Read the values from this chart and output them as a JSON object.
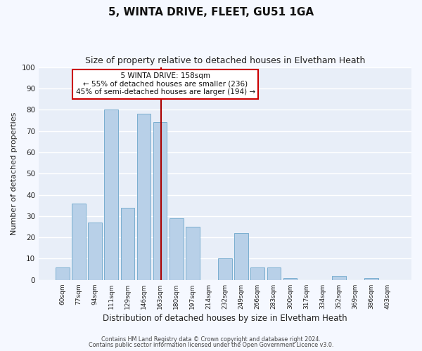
{
  "title": "5, WINTA DRIVE, FLEET, GU51 1GA",
  "subtitle": "Size of property relative to detached houses in Elvetham Heath",
  "xlabel": "Distribution of detached houses by size in Elvetham Heath",
  "ylabel": "Number of detached properties",
  "bar_labels": [
    "60sqm",
    "77sqm",
    "94sqm",
    "111sqm",
    "129sqm",
    "146sqm",
    "163sqm",
    "180sqm",
    "197sqm",
    "214sqm",
    "232sqm",
    "249sqm",
    "266sqm",
    "283sqm",
    "300sqm",
    "317sqm",
    "334sqm",
    "352sqm",
    "369sqm",
    "386sqm",
    "403sqm"
  ],
  "bar_values": [
    6,
    36,
    27,
    80,
    34,
    78,
    74,
    29,
    25,
    0,
    10,
    22,
    6,
    6,
    1,
    0,
    0,
    2,
    0,
    1,
    0
  ],
  "bar_color": "#b8d0e8",
  "bar_edge_color": "#7aaed0",
  "annotation_title": "5 WINTA DRIVE: 158sqm",
  "annotation_line1": "← 55% of detached houses are smaller (236)",
  "annotation_line2": "45% of semi-detached houses are larger (194) →",
  "annotation_box_color": "#ffffff",
  "annotation_box_edge": "#cc0000",
  "vline_color": "#aa0000",
  "vline_pos": 6.07,
  "ylim": [
    0,
    100
  ],
  "yticks": [
    0,
    10,
    20,
    30,
    40,
    50,
    60,
    70,
    80,
    90,
    100
  ],
  "footer1": "Contains HM Land Registry data © Crown copyright and database right 2024.",
  "footer2": "Contains public sector information licensed under the Open Government Licence v3.0.",
  "bg_color": "#f5f8ff",
  "plot_bg_color": "#e8eef8",
  "grid_color": "#ffffff",
  "title_fontsize": 11,
  "subtitle_fontsize": 9
}
